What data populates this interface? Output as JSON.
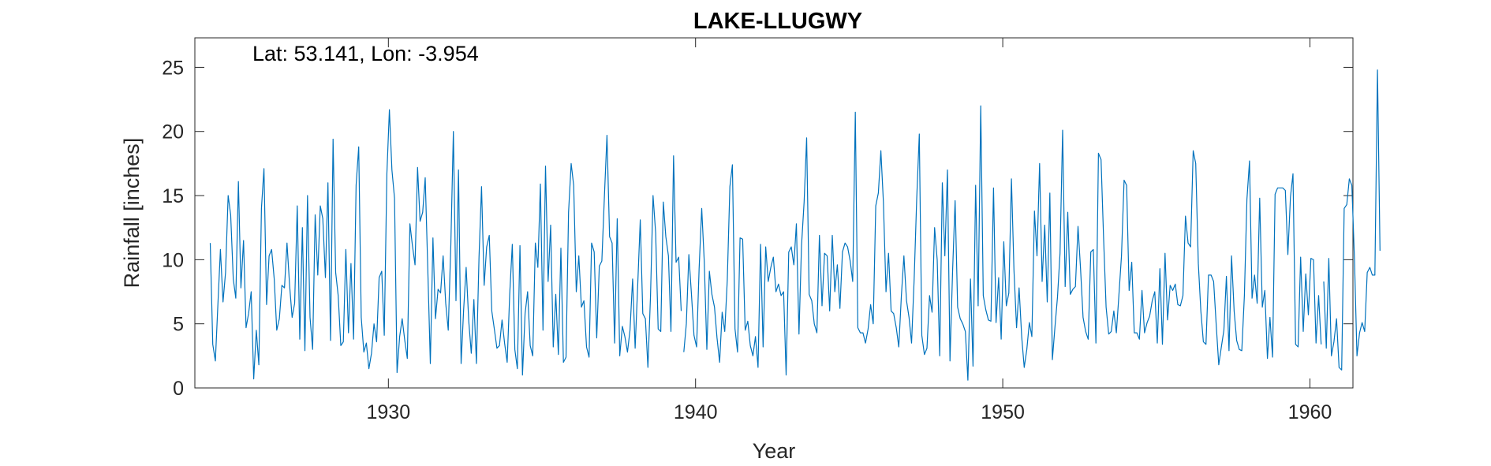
{
  "chart_data": {
    "type": "line",
    "title": "LAKE-LLUGWY",
    "annotation": "Lat: 53.141, Lon: -3.954",
    "xlabel": "Year",
    "ylabel": "Rainfall [inches]",
    "xlim": [
      1923.7,
      1961.4
    ],
    "ylim": [
      0,
      27.3
    ],
    "xticks": [
      1930,
      1940,
      1950,
      1960
    ],
    "xtick_labels": [
      "1930",
      "1940",
      "1950",
      "1960"
    ],
    "yticks": [
      0,
      5,
      10,
      15,
      20,
      25
    ],
    "ytick_labels": [
      "0",
      "5",
      "10",
      "15",
      "20",
      "25"
    ],
    "grid": false,
    "legend": "none",
    "line_color": "#0072BD",
    "series": [
      {
        "x_start": 1924.2,
        "x_step": 0.08333,
        "values": [
          11.3,
          3.4,
          2.1,
          6.5,
          10.8,
          6.7,
          9.0,
          15.0,
          13.5,
          8.5,
          7.0,
          16.1,
          7.8,
          11.5,
          4.7,
          5.8,
          7.5,
          0.7,
          4.5,
          1.8,
          14.0,
          17.1,
          6.5,
          10.3,
          10.8,
          8.5,
          4.5,
          5.4,
          8.0,
          7.8,
          11.3,
          8.0,
          5.5,
          6.6,
          14.2,
          3.8,
          12.5,
          2.9,
          15.0,
          5.5,
          3.0,
          13.5,
          8.8,
          14.2,
          13.2,
          8.6,
          16.0,
          3.7,
          19.4,
          9.0,
          7.2,
          3.3,
          3.6,
          10.8,
          4.3,
          9.7,
          3.8,
          15.8,
          18.8,
          5.5,
          2.8,
          3.5,
          1.5,
          2.7,
          5.0,
          3.6,
          8.6,
          9.1,
          4.1,
          16.7,
          21.7,
          17.0,
          14.8,
          1.2,
          4.0,
          5.4,
          3.7,
          2.3,
          12.8,
          11.1,
          9.6,
          17.2,
          13.0,
          13.7,
          16.4,
          9.2,
          1.9,
          11.7,
          5.4,
          7.7,
          7.4,
          10.3,
          6.6,
          4.5,
          11.2,
          20.0,
          6.8,
          17.0,
          1.9,
          6.1,
          9.4,
          5.2,
          2.7,
          6.9,
          1.9,
          10.2,
          15.7,
          8.0,
          11.0,
          11.9,
          6.0,
          4.6,
          3.1,
          3.3,
          5.3,
          3.5,
          2.0,
          7.3,
          11.2,
          3.0,
          1.5,
          11.1,
          1.0,
          5.8,
          7.5,
          3.3,
          2.5,
          11.3,
          9.4,
          15.9,
          4.5,
          17.3,
          8.3,
          12.7,
          3.2,
          7.3,
          2.6,
          10.9,
          2.0,
          2.4,
          13.7,
          17.5,
          15.8,
          7.5,
          10.3,
          6.3,
          6.8,
          3.2,
          2.4,
          11.3,
          10.6,
          3.9,
          9.5,
          9.9,
          15.0,
          19.7,
          11.8,
          11.3,
          3.5,
          13.2,
          2.5,
          4.8,
          4.0,
          2.8,
          4.5,
          8.5,
          3.1,
          7.9,
          13.1,
          5.8,
          5.4,
          1.6,
          7.2,
          15.0,
          12.1,
          4.6,
          4.4,
          14.5,
          11.8,
          10.3,
          4.4,
          18.1,
          9.8,
          10.2,
          6.0,
          2.8,
          5.0,
          10.4,
          7.3,
          4.1,
          3.2,
          9.3,
          14.0,
          9.9,
          3.0,
          9.1,
          7.3,
          6.3,
          3.9,
          2.0,
          5.9,
          4.4,
          8.4,
          15.7,
          17.4,
          4.6,
          2.8,
          11.7,
          11.6,
          4.5,
          5.2,
          3.3,
          2.5,
          4.0,
          1.6,
          11.2,
          3.2,
          11.0,
          8.3,
          9.4,
          10.2,
          7.5,
          8.1,
          7.2,
          7.5,
          1.0,
          10.6,
          11.0,
          9.6,
          12.8,
          4.2,
          11.1,
          14.5,
          19.5,
          7.3,
          6.8,
          5.0,
          4.3,
          11.9,
          6.4,
          10.5,
          10.3,
          6.0,
          11.9,
          7.5,
          9.6,
          6.2,
          10.6,
          11.3,
          11.0,
          9.9,
          8.3,
          21.5,
          4.7,
          4.3,
          4.3,
          3.5,
          4.6,
          6.5,
          5.0,
          14.2,
          15.2,
          18.5,
          14.5,
          7.5,
          10.5,
          6.0,
          5.8,
          4.7,
          3.2,
          7.2,
          10.3,
          6.8,
          5.5,
          3.5,
          8.5,
          14.7,
          19.8,
          4.1,
          2.6,
          3.1,
          7.2,
          5.9,
          12.5,
          10.0,
          2.5,
          16.0,
          10.3,
          17.0,
          2.1,
          9.1,
          14.6,
          6.3,
          5.4,
          5.0,
          4.4,
          0.6,
          8.5,
          1.7,
          15.8,
          6.4,
          22.0,
          7.2,
          6.1,
          5.3,
          5.2,
          15.6,
          5.1,
          8.6,
          3.8,
          11.4,
          6.4,
          7.4,
          16.3,
          9.2,
          4.7,
          7.8,
          4.0,
          1.6,
          3.0,
          5.1,
          4.0,
          13.8,
          10.3,
          17.5,
          8.3,
          12.7,
          6.7,
          15.2,
          2.2,
          4.7,
          7.1,
          10.5,
          20.1,
          7.9,
          13.7,
          7.3,
          7.7,
          7.9,
          12.6,
          9.3,
          5.5,
          4.4,
          3.8,
          10.6,
          10.8,
          3.5,
          18.3,
          17.8,
          11.7,
          6.3,
          4.2,
          4.4,
          6.0,
          4.3,
          7.3,
          10.3,
          16.2,
          15.8,
          7.6,
          9.8,
          4.3,
          4.3,
          3.8,
          7.6,
          4.3,
          5.1,
          5.6,
          6.8,
          7.5,
          3.5,
          9.3,
          3.4,
          10.5,
          5.3,
          8.0,
          7.6,
          8.1,
          6.5,
          6.4,
          7.2,
          13.4,
          11.3,
          11.0,
          18.5,
          17.5,
          9.7,
          6.0,
          3.6,
          3.4,
          8.8,
          8.8,
          8.3,
          4.9,
          1.8,
          3.2,
          4.5,
          8.7,
          2.9,
          10.3,
          6.0,
          3.7,
          3.0,
          2.9,
          7.2,
          14.7,
          17.7,
          7.0,
          8.8,
          6.6,
          14.8,
          6.3,
          7.6,
          2.3,
          5.5,
          2.4,
          15.1,
          15.6,
          15.6,
          15.6,
          15.4,
          10.4,
          14.9,
          16.7,
          3.4,
          3.2,
          10.2,
          4.4,
          8.9,
          5.7,
          10.1,
          10.0,
          3.5,
          7.2,
          3.4,
          8.3,
          3.1,
          10.1,
          2.5,
          3.6,
          5.4,
          1.6,
          1.4,
          14.0,
          14.3,
          16.3,
          15.8,
          10.1,
          2.5,
          4.3,
          5.1,
          4.4,
          9.0,
          9.4,
          8.8,
          8.8,
          24.8,
          10.7
        ],
        "gaps_after_index": [
          184,
          434
        ]
      }
    ]
  }
}
